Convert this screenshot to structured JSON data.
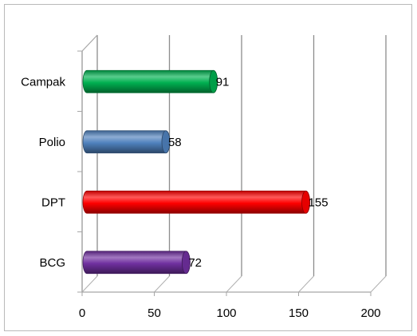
{
  "chart_data": {
    "type": "bar",
    "orientation": "horizontal",
    "style": "3d-cylinder",
    "categories": [
      "BCG",
      "DPT",
      "Polio",
      "Campak"
    ],
    "values": [
      72,
      155,
      58,
      91
    ],
    "colors": [
      "#7030a0",
      "#ff0000",
      "#4f81bd",
      "#00b050"
    ],
    "xlim": [
      0,
      200
    ],
    "x_ticks": [
      0,
      50,
      100,
      150,
      200
    ],
    "title": "",
    "xlabel": "",
    "ylabel": "",
    "grid": true,
    "legend": "none",
    "data_labels": true
  }
}
